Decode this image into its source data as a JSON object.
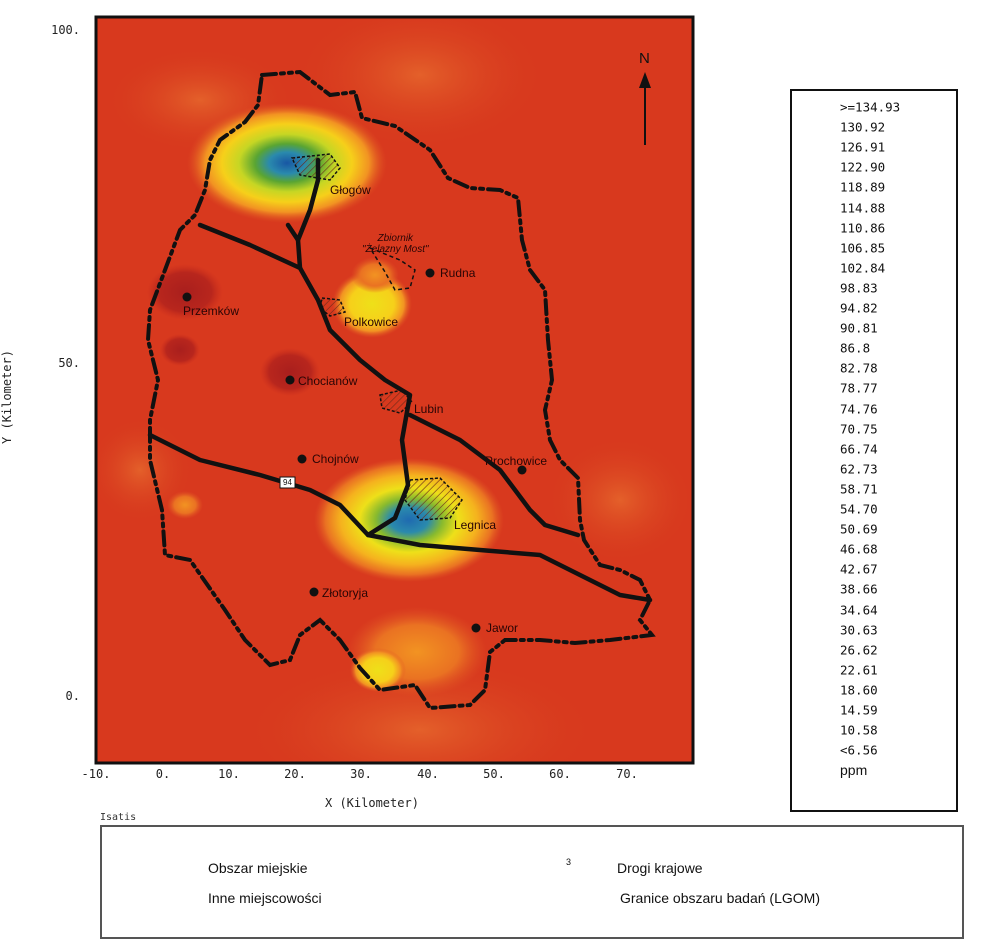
{
  "map": {
    "x_axis_title": "X (Kilometer)",
    "y_axis_title": "Y (Kilometer)",
    "x_ticks": [
      "-10.",
      "0.",
      "10.",
      "20.",
      "30.",
      "40.",
      "50.",
      "60.",
      "70."
    ],
    "y_ticks": [
      "100.",
      "50.",
      "0."
    ],
    "north_label": "N",
    "software_label": "Isatis",
    "road_number": "94",
    "places": {
      "glogow": "Głogów",
      "zbiornik": "Zbiornik\n\"Żelazny Most\"",
      "rudna": "Rudna",
      "przemkow": "Przemków",
      "polkowice": "Polkowice",
      "chocianow": "Chocianów",
      "lubin": "Lubin",
      "chojnow": "Chojnów",
      "prochowice": "Prochowice",
      "legnica": "Legnica",
      "zlotoryja": "Złotoryja",
      "jawor": "Jawor"
    }
  },
  "colorbar": {
    "unit": "ppm",
    "levels": [
      ">=134.93",
      "130.92",
      "126.91",
      "122.90",
      "118.89",
      "114.88",
      "110.86",
      "106.85",
      "102.84",
      "98.83",
      "94.82",
      "90.81",
      "86.8",
      "82.78",
      "78.77",
      "74.76",
      "70.75",
      "66.74",
      "62.73",
      "58.71",
      "54.70",
      "50.69",
      "46.68",
      "42.67",
      "38.66",
      "34.64",
      "30.63",
      "26.62",
      "22.61",
      "18.60",
      "14.59",
      "10.58",
      "<6.56"
    ],
    "colors": [
      "#4a9c9e",
      "#3aa3d9",
      "#2f95d4",
      "#2a88c8",
      "#2379bd",
      "#1f6ab0",
      "#1857a4",
      "#16489a",
      "#1a5ca6",
      "#1f6fb0",
      "#2480b5",
      "#2a8aad",
      "#30978f",
      "#3f9a6a",
      "#4d9e45",
      "#5aa532",
      "#6aac2f",
      "#88ba2e",
      "#a8c82a",
      "#c6d624",
      "#dedc1e",
      "#eee019",
      "#f6d01a",
      "#f5b21e",
      "#f29322",
      "#ea7222",
      "#e05424",
      "#d8401f",
      "#d3361d",
      "#c92d1c",
      "#b8261d",
      "#a91f1d",
      "#9e1b1d"
    ]
  },
  "legend": {
    "urban_area": "Obszar miejskie",
    "other_places": "Inne miejscowości",
    "national_roads": "Drogi krajowe",
    "study_boundary": "Granice obszaru badań (LGOM)",
    "road_sign": "3"
  }
}
